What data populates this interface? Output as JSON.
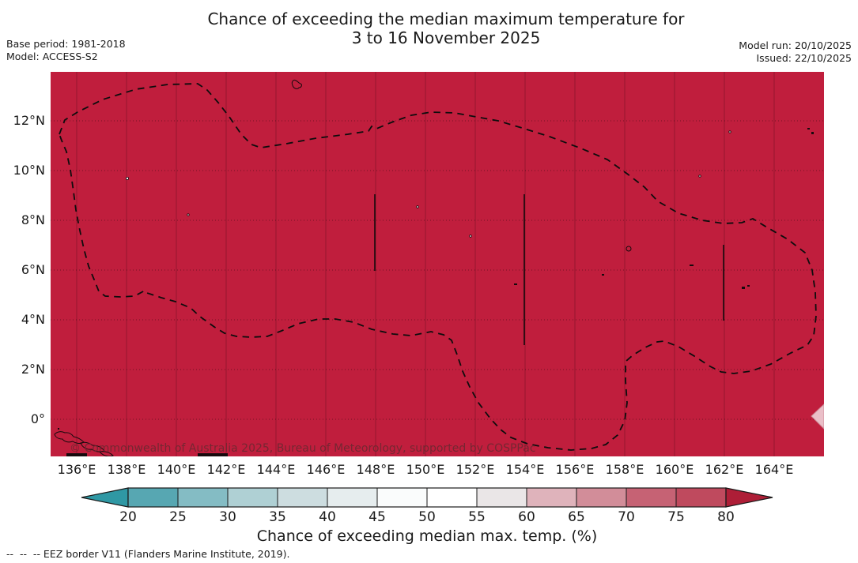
{
  "title": {
    "line1": "Chance of exceeding the median maximum temperature for",
    "line2": "3 to 16 November 2025"
  },
  "meta": {
    "base_period": "Base period: 1981-2018",
    "model": "Model: ACCESS-S2",
    "model_run": "Model run: 20/10/2025",
    "issued": "Issued: 22/10/2025"
  },
  "map": {
    "x_ticks": [
      "136°E",
      "138°E",
      "140°E",
      "142°E",
      "144°E",
      "146°E",
      "148°E",
      "150°E",
      "152°E",
      "154°E",
      "156°E",
      "158°E",
      "160°E",
      "162°E",
      "164°E"
    ],
    "y_ticks": [
      "12°N",
      "10°N",
      "8°N",
      "6°N",
      "4°N",
      "2°N",
      "0°"
    ],
    "watermark": "© Commonwealth of Australia 2025, Bureau of Meteorology, supported by COSPPac",
    "fill_color": "#c01e3d"
  },
  "colorbar": {
    "ticks": [
      "20",
      "25",
      "30",
      "35",
      "40",
      "45",
      "50",
      "55",
      "60",
      "65",
      "70",
      "75",
      "80"
    ],
    "colors": [
      "#2f98a4",
      "#57a7b2",
      "#84bcc4",
      "#afd0d4",
      "#cddde0",
      "#e6edee",
      "#fafcfc",
      "#ffffff",
      "#eae6e7",
      "#dfb3bb",
      "#d28d99",
      "#c66274",
      "#bf4a5e",
      "#ae1e37"
    ],
    "label": "Chance of exceeding median max. temp. (%)"
  },
  "footer": {
    "eez_note": "--  --  -- EEZ border V11 (Flanders Marine Institute, 2019)."
  },
  "chart_data": {
    "type": "heatmap",
    "title": "Chance of exceeding the median maximum temperature for 3 to 16 November 2025",
    "base_period": "1981-2018",
    "model": "ACCESS-S2",
    "model_run": "20/10/2025",
    "issued": "22/10/2025",
    "x_axis": {
      "ticks": [
        "136°E",
        "138°E",
        "140°E",
        "142°E",
        "144°E",
        "146°E",
        "148°E",
        "150°E",
        "152°E",
        "154°E",
        "156°E",
        "158°E",
        "160°E",
        "162°E",
        "164°E"
      ],
      "approx_range": [
        "135°E",
        "166°E"
      ]
    },
    "y_axis": {
      "ticks": [
        "0°",
        "2°N",
        "4°N",
        "6°N",
        "8°N",
        "10°N",
        "12°N"
      ],
      "approx_range": [
        "1.5°S",
        "14°N"
      ]
    },
    "colorbar": {
      "label": "Chance of exceeding median max. temp. (%)",
      "tick_values": [
        20,
        25,
        30,
        35,
        40,
        45,
        50,
        55,
        60,
        65,
        70,
        75,
        80
      ],
      "segment_colors": [
        "#2f98a4",
        "#57a7b2",
        "#84bcc4",
        "#afd0d4",
        "#cddde0",
        "#e6edee",
        "#fafcfc",
        "#ffffff",
        "#eae6e7",
        "#dfb3bb",
        "#d28d99",
        "#c66274",
        "#bf4a5e",
        "#ae1e37"
      ],
      "arrows": "both ends (under 20, over 80)"
    },
    "values": "Uniform highest category: entire mapped EEZ region filled with the >80% chance colour (dark crimson)",
    "overlays": [
      "Dashed EEZ border outline",
      "Thin vertical data-gap lines near 148°E, 154°E and 162°E",
      "Small island outlines (Guam, Yap, atolls, islands in the south-west corner)",
      "Copyright watermark text"
    ],
    "grid": true,
    "legend_position": "bottom colorbar"
  }
}
